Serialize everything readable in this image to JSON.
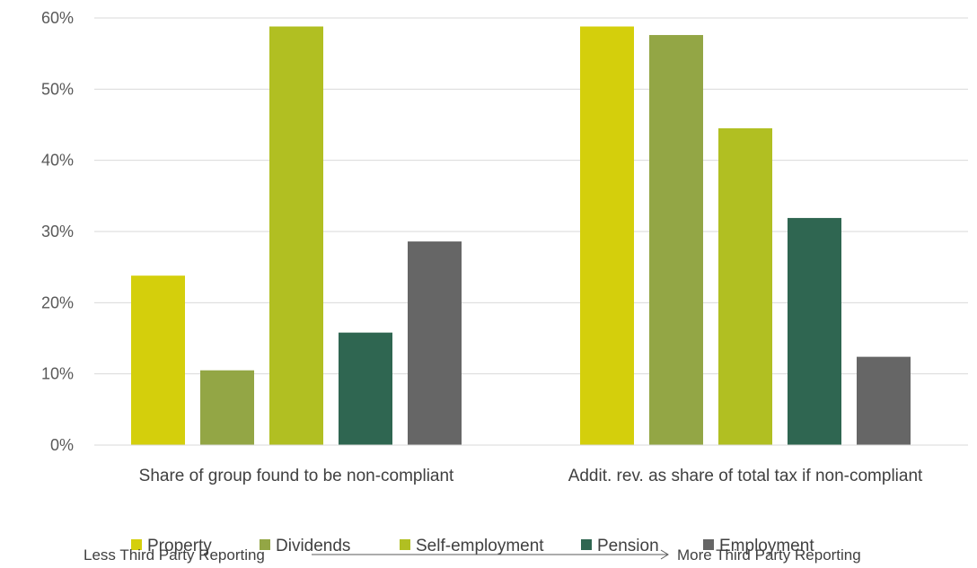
{
  "chart_data": {
    "type": "bar",
    "categories": [
      "Share of group found to be non-compliant",
      "Addit. rev. as share of total tax if non-compliant"
    ],
    "series": [
      {
        "name": "Property",
        "color": "#d4cf0c",
        "values": [
          23.8,
          58.8
        ]
      },
      {
        "name": "Dividends",
        "color": "#93a645",
        "values": [
          10.5,
          57.6
        ]
      },
      {
        "name": "Self-employment",
        "color": "#b1bf22",
        "values": [
          58.8,
          44.5
        ]
      },
      {
        "name": "Pension",
        "color": "#2f6651",
        "values": [
          15.8,
          31.9
        ]
      },
      {
        "name": "Employment",
        "color": "#666666",
        "values": [
          28.6,
          12.4
        ]
      }
    ],
    "ylim": [
      0,
      60
    ],
    "yticks": [
      "0%",
      "10%",
      "20%",
      "30%",
      "40%",
      "50%",
      "60%"
    ],
    "grid": true,
    "legend": "bottom",
    "annotation": {
      "left": "Less Third Party Reporting",
      "right": "More Third Party Reporting"
    }
  }
}
